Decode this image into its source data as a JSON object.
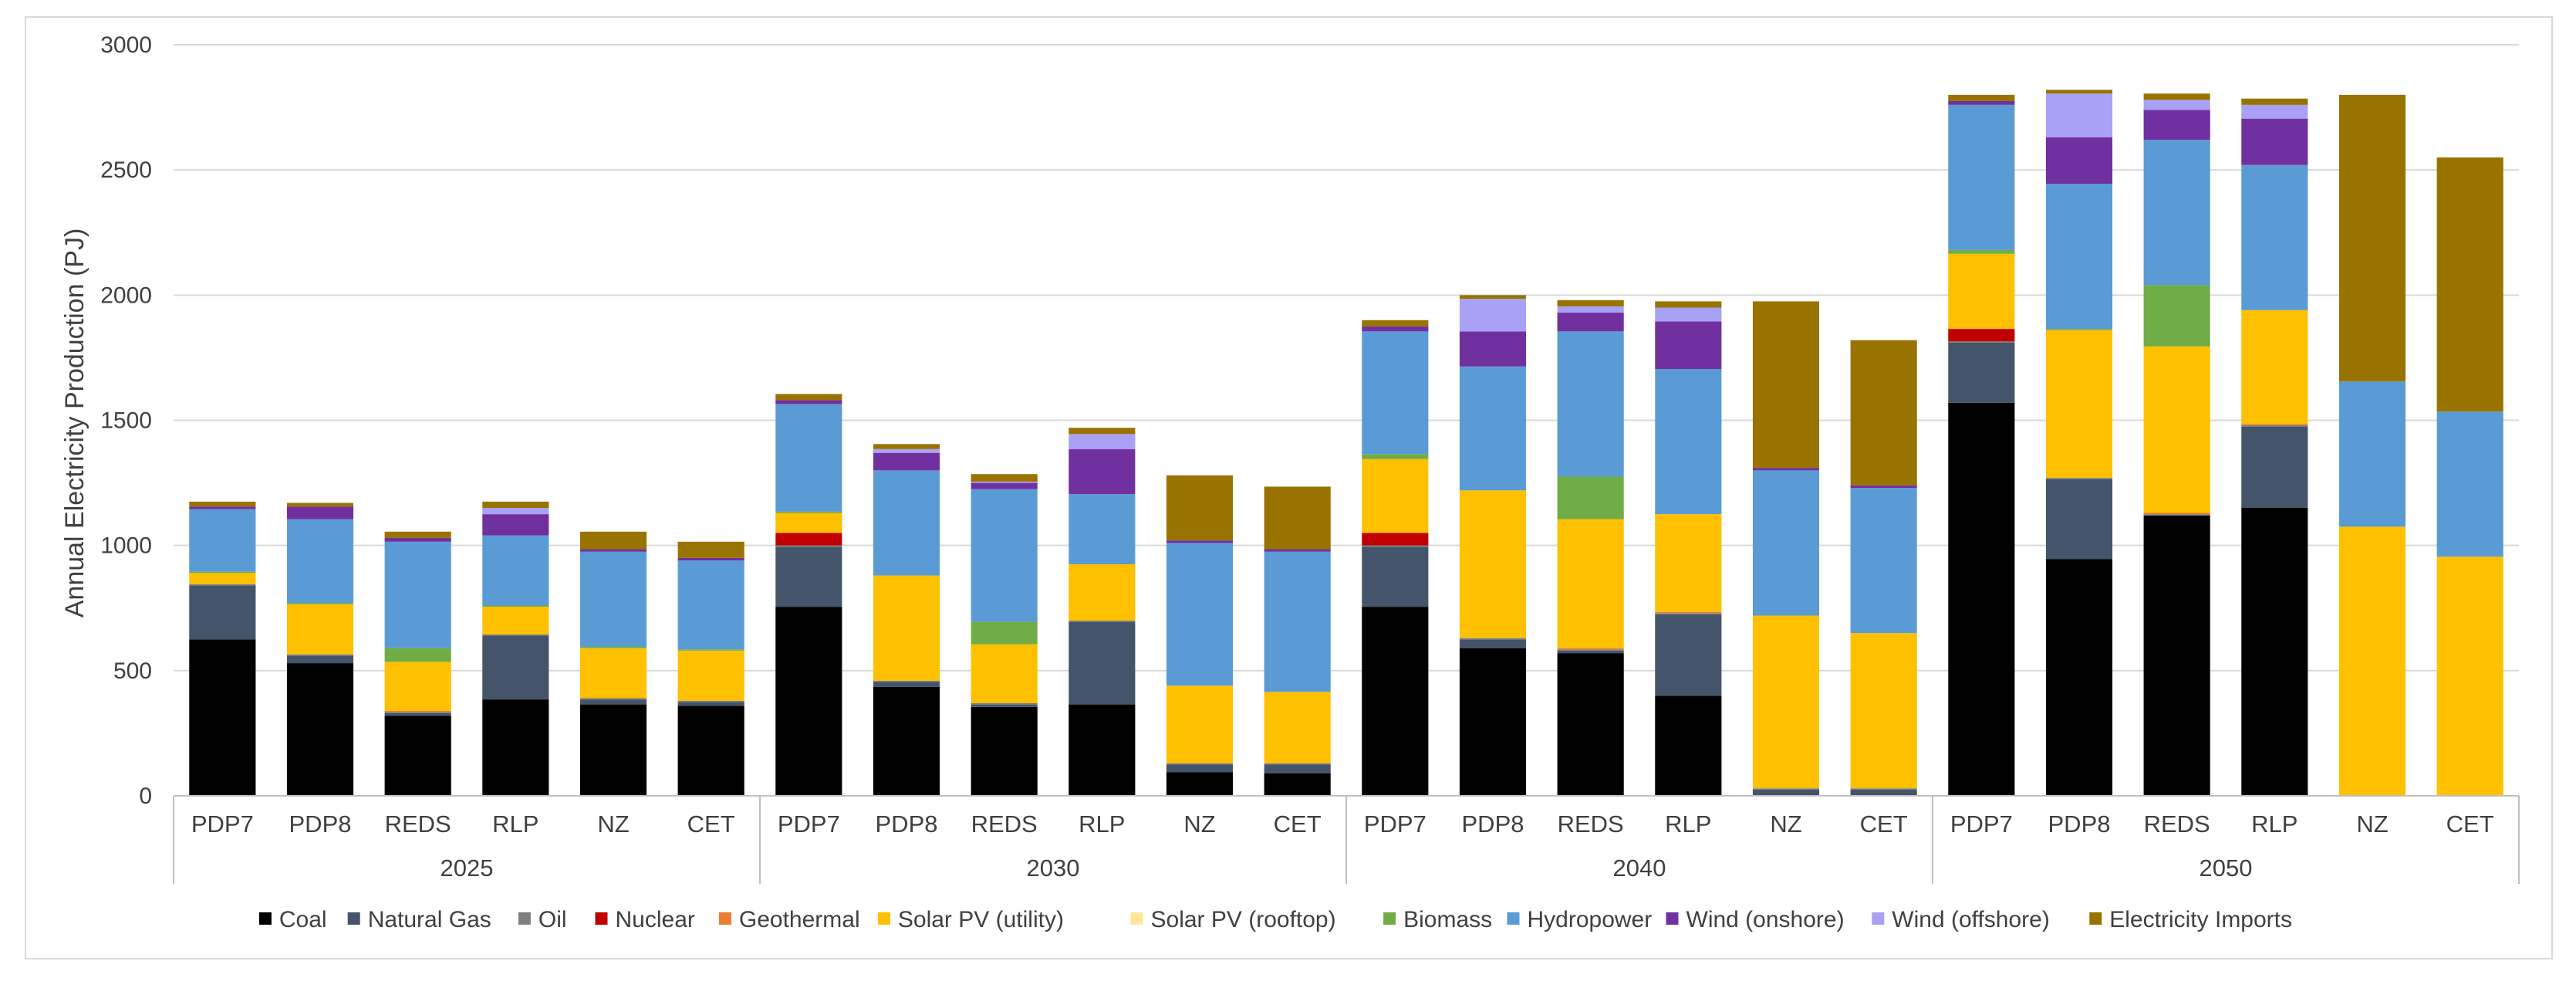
{
  "chart_data": {
    "type": "bar",
    "stacked": true,
    "title": "",
    "xlabel": "",
    "ylabel": "Annual Electricity Production (PJ)",
    "ylim": [
      0,
      3000
    ],
    "yticks": [
      0,
      500,
      1000,
      1500,
      2000,
      2500,
      3000
    ],
    "legend_position": "bottom",
    "groups": [
      {
        "label": "2025",
        "categories": [
          "PDP7",
          "PDP8",
          "REDS",
          "RLP",
          "NZ",
          "CET"
        ]
      },
      {
        "label": "2030",
        "categories": [
          "PDP7",
          "PDP8",
          "REDS",
          "RLP",
          "NZ",
          "CET"
        ]
      },
      {
        "label": "2040",
        "categories": [
          "PDP7",
          "PDP8",
          "REDS",
          "RLP",
          "NZ",
          "CET"
        ]
      },
      {
        "label": "2050",
        "categories": [
          "PDP7",
          "PDP8",
          "REDS",
          "RLP",
          "NZ",
          "CET"
        ]
      }
    ],
    "series": [
      {
        "name": "Coal",
        "color": "#000000",
        "values": [
          625,
          530,
          320,
          385,
          365,
          360,
          755,
          435,
          355,
          365,
          95,
          90,
          755,
          590,
          570,
          400,
          0,
          0,
          1570,
          945,
          1120,
          1150,
          0,
          0
        ]
      },
      {
        "name": "Natural Gas",
        "color": "#44546a",
        "values": [
          215,
          30,
          10,
          255,
          20,
          15,
          240,
          20,
          10,
          330,
          30,
          35,
          240,
          35,
          10,
          325,
          25,
          25,
          240,
          320,
          0,
          325,
          0,
          0
        ]
      },
      {
        "name": "Oil",
        "color": "#7f7f7f",
        "values": [
          5,
          5,
          5,
          5,
          5,
          5,
          5,
          5,
          5,
          5,
          5,
          5,
          5,
          5,
          5,
          5,
          5,
          5,
          5,
          5,
          5,
          5,
          0,
          0
        ]
      },
      {
        "name": "Nuclear",
        "color": "#c00000",
        "values": [
          0,
          0,
          0,
          0,
          0,
          0,
          50,
          0,
          0,
          0,
          0,
          0,
          50,
          0,
          0,
          0,
          0,
          0,
          50,
          0,
          0,
          0,
          0,
          0
        ]
      },
      {
        "name": "Geothermal",
        "color": "#ed7d31",
        "values": [
          0,
          0,
          5,
          0,
          0,
          0,
          0,
          0,
          0,
          0,
          0,
          0,
          0,
          0,
          5,
          5,
          0,
          0,
          0,
          0,
          5,
          5,
          0,
          0
        ]
      },
      {
        "name": "Solar PV (utility)",
        "color": "#ffc000",
        "values": [
          45,
          200,
          195,
          110,
          200,
          200,
          80,
          420,
          235,
          225,
          310,
          285,
          295,
          590,
          515,
          390,
          690,
          620,
          300,
          590,
          665,
          455,
          1075,
          955
        ]
      },
      {
        "name": "Solar PV (rooftop)",
        "color": "#ffe699",
        "values": [
          0,
          0,
          0,
          0,
          0,
          0,
          0,
          0,
          0,
          0,
          0,
          0,
          0,
          0,
          0,
          0,
          0,
          0,
          0,
          0,
          0,
          0,
          0,
          0
        ]
      },
      {
        "name": "Biomass",
        "color": "#70ad47",
        "values": [
          5,
          5,
          55,
          5,
          5,
          5,
          5,
          0,
          90,
          0,
          0,
          0,
          20,
          0,
          170,
          0,
          0,
          0,
          15,
          5,
          245,
          0,
          0,
          0
        ]
      },
      {
        "name": "Hydropower",
        "color": "#5b9bd5",
        "values": [
          250,
          335,
          425,
          280,
          380,
          355,
          430,
          420,
          530,
          280,
          570,
          560,
          490,
          495,
          580,
          580,
          580,
          580,
          580,
          580,
          580,
          580,
          580,
          580
        ]
      },
      {
        "name": "Wind (onshore)",
        "color": "#7030a0",
        "values": [
          10,
          50,
          15,
          85,
          10,
          10,
          15,
          70,
          25,
          180,
          10,
          10,
          20,
          140,
          75,
          190,
          10,
          10,
          15,
          185,
          120,
          185,
          0,
          0
        ]
      },
      {
        "name": "Wind (offshore)",
        "color": "#a9a1f5",
        "values": [
          0,
          0,
          0,
          25,
          0,
          0,
          0,
          15,
          5,
          60,
          0,
          0,
          0,
          130,
          25,
          55,
          0,
          0,
          0,
          175,
          40,
          55,
          0,
          0
        ]
      },
      {
        "name": "Electricity Imports",
        "color": "#997300",
        "values": [
          20,
          15,
          25,
          25,
          70,
          65,
          25,
          20,
          30,
          25,
          260,
          250,
          25,
          15,
          25,
          25,
          665,
          580,
          25,
          15,
          25,
          25,
          1145,
          1015
        ]
      }
    ]
  }
}
